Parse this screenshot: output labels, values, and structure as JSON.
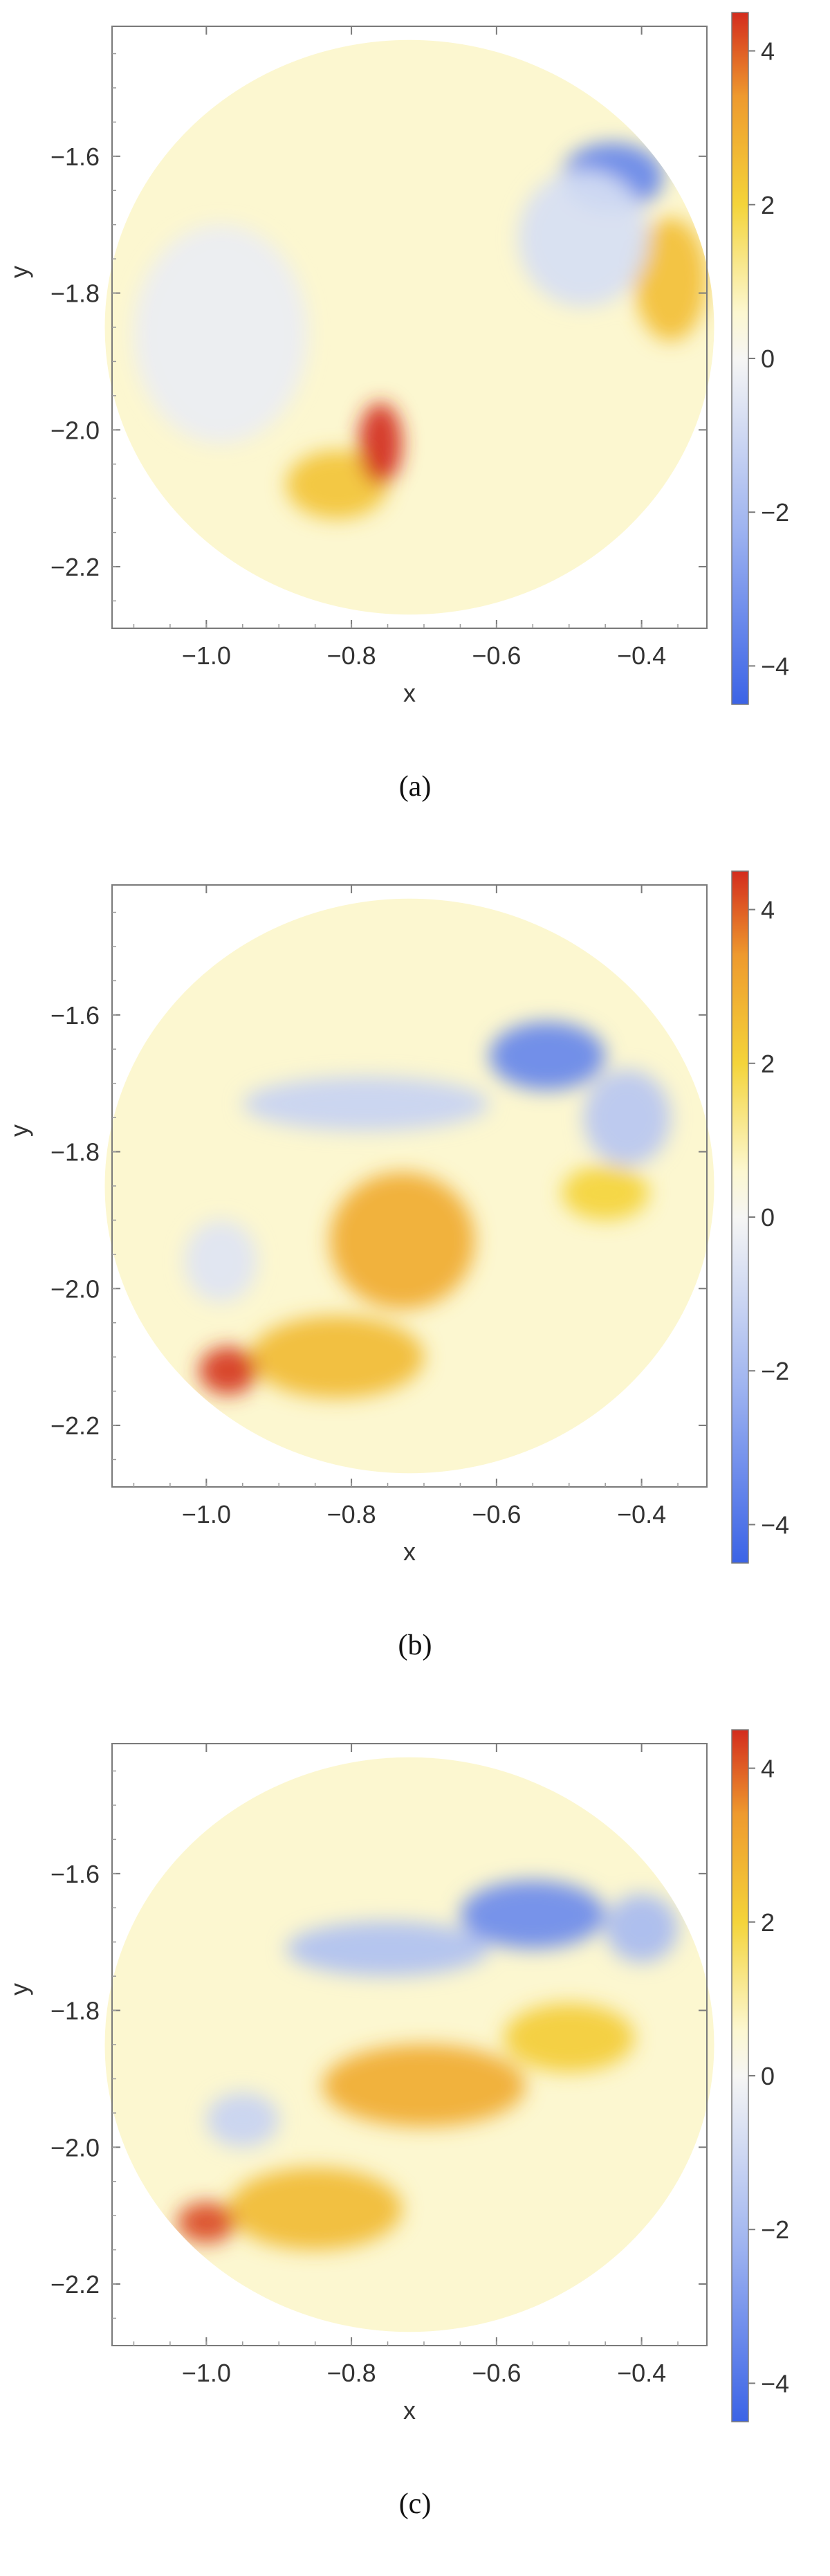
{
  "colorbar": {
    "range": [
      -4.5,
      4.5
    ],
    "ticks": [
      -4,
      -2,
      0,
      2,
      4
    ],
    "tick_labels": [
      "−4",
      "−2",
      "0",
      "2",
      "4"
    ],
    "colors": {
      "neg": "#3B63E6",
      "neg_mid": "#9FB4F0",
      "zero": "#F6F6F4",
      "pos_low": "#FCF7D0",
      "pos_mid": "#F4D43A",
      "pos_hi": "#EE9A2E",
      "max": "#D32C1E"
    }
  },
  "chart_data": [
    {
      "type": "heatmap",
      "caption": "(a)",
      "xlabel": "x",
      "ylabel": "y",
      "xlim": [
        -1.13,
        -0.31
      ],
      "ylim": [
        -2.29,
        -1.41
      ],
      "xticks": [
        -1.0,
        -0.8,
        -0.6,
        -0.4
      ],
      "xtick_labels": [
        "−1.0",
        "−0.8",
        "−0.6",
        "−0.4"
      ],
      "yticks": [
        -2.2,
        -2.0,
        -1.8,
        -1.6
      ],
      "ytick_labels": [
        "−2.2",
        "−2.0",
        "−1.8",
        "−1.6"
      ],
      "domain": {
        "shape": "circle",
        "center": [
          -0.72,
          -1.85
        ],
        "radius": 0.42,
        "background_value": 0.6
      },
      "features": [
        {
          "kind": "blob",
          "x": -0.36,
          "y": -1.78,
          "value": 2.5,
          "rx": 0.05,
          "ry": 0.09
        },
        {
          "kind": "blob",
          "x": -0.44,
          "y": -1.63,
          "value": -3.5,
          "rx": 0.07,
          "ry": 0.05
        },
        {
          "kind": "blob",
          "x": -0.48,
          "y": -1.72,
          "value": -0.8,
          "rx": 0.09,
          "ry": 0.1
        },
        {
          "kind": "blob",
          "x": -0.98,
          "y": -1.86,
          "value": -0.3,
          "rx": 0.12,
          "ry": 0.16
        },
        {
          "kind": "blob",
          "x": -0.82,
          "y": -2.08,
          "value": 2.4,
          "rx": 0.07,
          "ry": 0.05
        },
        {
          "kind": "blob",
          "x": -0.76,
          "y": -2.02,
          "value": 4.5,
          "rx": 0.03,
          "ry": 0.06
        }
      ]
    },
    {
      "type": "heatmap",
      "caption": "(b)",
      "xlabel": "x",
      "ylabel": "y",
      "xlim": [
        -1.13,
        -0.31
      ],
      "ylim": [
        -2.29,
        -1.41
      ],
      "xticks": [
        -1.0,
        -0.8,
        -0.6,
        -0.4
      ],
      "xtick_labels": [
        "−1.0",
        "−0.8",
        "−0.6",
        "−0.4"
      ],
      "yticks": [
        -2.2,
        -2.0,
        -1.8,
        -1.6
      ],
      "ytick_labels": [
        "−2.2",
        "−2.0",
        "−1.8",
        "−1.6"
      ],
      "domain": {
        "shape": "circle",
        "center": [
          -0.72,
          -1.85
        ],
        "radius": 0.42,
        "background_value": 0.6
      },
      "features": [
        {
          "kind": "blob",
          "x": -0.53,
          "y": -1.66,
          "value": -3.5,
          "rx": 0.08,
          "ry": 0.05
        },
        {
          "kind": "blob",
          "x": -0.42,
          "y": -1.75,
          "value": -1.6,
          "rx": 0.06,
          "ry": 0.07
        },
        {
          "kind": "blob",
          "x": -0.78,
          "y": -1.73,
          "value": -1.2,
          "rx": 0.17,
          "ry": 0.04
        },
        {
          "kind": "blob",
          "x": -0.98,
          "y": -1.96,
          "value": -0.6,
          "rx": 0.05,
          "ry": 0.06
        },
        {
          "kind": "blob",
          "x": -0.73,
          "y": -1.93,
          "value": 3.0,
          "rx": 0.1,
          "ry": 0.1
        },
        {
          "kind": "blob",
          "x": -0.82,
          "y": -2.1,
          "value": 2.6,
          "rx": 0.12,
          "ry": 0.06
        },
        {
          "kind": "blob",
          "x": -0.97,
          "y": -2.12,
          "value": 4.4,
          "rx": 0.04,
          "ry": 0.035
        },
        {
          "kind": "blob",
          "x": -0.45,
          "y": -1.86,
          "value": 2.0,
          "rx": 0.06,
          "ry": 0.04
        }
      ]
    },
    {
      "type": "heatmap",
      "caption": "(c)",
      "xlabel": "x",
      "ylabel": "y",
      "xlim": [
        -1.13,
        -0.31
      ],
      "ylim": [
        -2.29,
        -1.41
      ],
      "xticks": [
        -1.0,
        -0.8,
        -0.6,
        -0.4
      ],
      "xtick_labels": [
        "−1.0",
        "−0.8",
        "−0.6",
        "−0.4"
      ],
      "yticks": [
        -2.2,
        -2.0,
        -1.8,
        -1.6
      ],
      "ytick_labels": [
        "−2.2",
        "−2.0",
        "−1.8",
        "−1.6"
      ],
      "domain": {
        "shape": "circle",
        "center": [
          -0.72,
          -1.85
        ],
        "radius": 0.42,
        "background_value": 0.6
      },
      "features": [
        {
          "kind": "blob",
          "x": -0.55,
          "y": -1.66,
          "value": -3.4,
          "rx": 0.1,
          "ry": 0.05
        },
        {
          "kind": "blob",
          "x": -0.4,
          "y": -1.68,
          "value": -2.0,
          "rx": 0.05,
          "ry": 0.05
        },
        {
          "kind": "blob",
          "x": -0.75,
          "y": -1.71,
          "value": -1.8,
          "rx": 0.14,
          "ry": 0.04
        },
        {
          "kind": "blob",
          "x": -0.95,
          "y": -1.96,
          "value": -1.2,
          "rx": 0.05,
          "ry": 0.04
        },
        {
          "kind": "blob",
          "x": -0.7,
          "y": -1.91,
          "value": 3.0,
          "rx": 0.14,
          "ry": 0.06
        },
        {
          "kind": "blob",
          "x": -0.5,
          "y": -1.84,
          "value": 2.2,
          "rx": 0.09,
          "ry": 0.05
        },
        {
          "kind": "blob",
          "x": -0.85,
          "y": -2.09,
          "value": 2.6,
          "rx": 0.12,
          "ry": 0.06
        },
        {
          "kind": "blob",
          "x": -1.0,
          "y": -2.11,
          "value": 4.2,
          "rx": 0.04,
          "ry": 0.03
        }
      ]
    }
  ]
}
